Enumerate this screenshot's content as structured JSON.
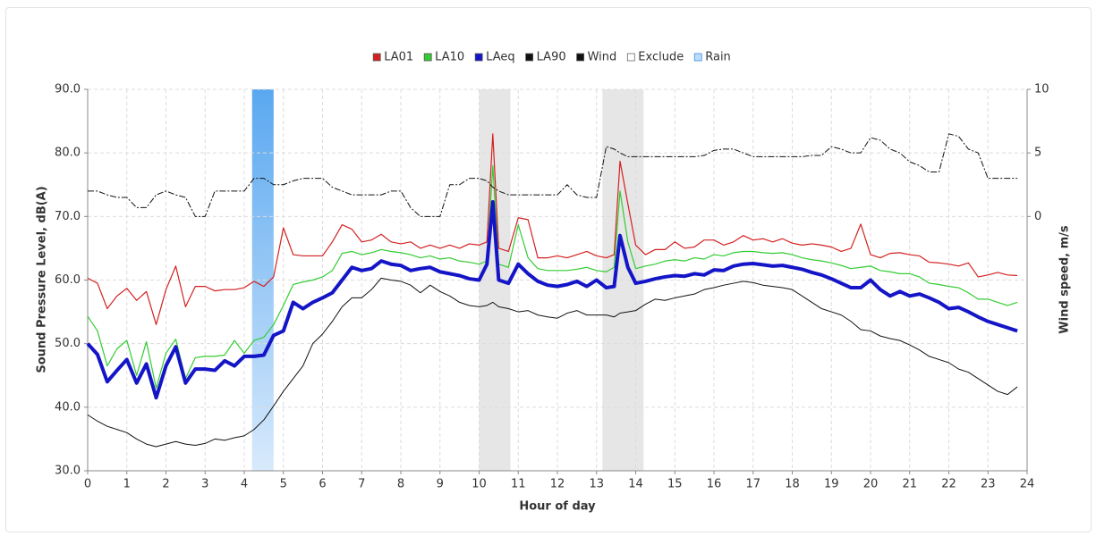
{
  "chart_data": {
    "type": "line",
    "x_label": "Hour of day",
    "y_label": "Sound Pressure Level, dB(A)",
    "y2_label": "Wind speed, m/s",
    "xlim": [
      0,
      24
    ],
    "xticks": [
      0,
      1,
      2,
      3,
      4,
      5,
      6,
      7,
      8,
      9,
      10,
      11,
      12,
      13,
      14,
      15,
      16,
      17,
      18,
      19,
      20,
      21,
      22,
      23,
      24
    ],
    "ylim": [
      30,
      90
    ],
    "yticks": [
      {
        "value": 30,
        "label": "30.0"
      },
      {
        "value": 40,
        "label": "40.0"
      },
      {
        "value": 50,
        "label": "50.0"
      },
      {
        "value": 60,
        "label": "60.0"
      },
      {
        "value": 70,
        "label": "70.0"
      },
      {
        "value": 80,
        "label": "80.0"
      },
      {
        "value": 90,
        "label": "90.0"
      }
    ],
    "y2lim": [
      -20,
      10
    ],
    "y2ticks": [
      0,
      5,
      10
    ],
    "grid": true,
    "legend": "top",
    "x": [
      0,
      0.25,
      0.5,
      0.75,
      1,
      1.25,
      1.5,
      1.75,
      2,
      2.25,
      2.5,
      2.75,
      3,
      3.25,
      3.5,
      3.75,
      4,
      4.25,
      4.5,
      4.75,
      5,
      5.25,
      5.5,
      5.75,
      6,
      6.25,
      6.5,
      6.75,
      7,
      7.25,
      7.5,
      7.75,
      8,
      8.25,
      8.5,
      8.75,
      9,
      9.25,
      9.5,
      9.75,
      10,
      10.2,
      10.35,
      10.5,
      10.75,
      11,
      11.25,
      11.5,
      11.75,
      12,
      12.25,
      12.5,
      12.75,
      13,
      13.25,
      13.45,
      13.6,
      13.8,
      14,
      14.25,
      14.5,
      14.75,
      15,
      15.25,
      15.5,
      15.75,
      16,
      16.25,
      16.5,
      16.75,
      17,
      17.25,
      17.5,
      17.75,
      18,
      18.25,
      18.5,
      18.75,
      19,
      19.25,
      19.5,
      19.75,
      20,
      20.25,
      20.5,
      20.75,
      21,
      21.25,
      21.5,
      21.75,
      22,
      22.25,
      22.5,
      22.75,
      23,
      23.25,
      23.5,
      23.75
    ],
    "series": [
      {
        "name": "LA01",
        "color": "#d42020",
        "width": 1.2,
        "values": [
          60.3,
          59.5,
          55.5,
          57.5,
          58.7,
          56.8,
          58.2,
          53,
          58.5,
          62.2,
          55.8,
          59,
          59,
          58.3,
          58.5,
          58.5,
          58.8,
          59.8,
          59,
          60.5,
          68.2,
          64,
          63.8,
          63.8,
          63.8,
          66,
          68.7,
          68,
          66,
          66.3,
          67.2,
          66,
          65.7,
          66,
          65,
          65.5,
          65,
          65.5,
          65,
          65.7,
          65.5,
          66,
          83,
          65,
          64.5,
          69.8,
          69.5,
          63.5,
          63.5,
          63.8,
          63.5,
          64,
          64.5,
          63.8,
          63.5,
          64,
          78.7,
          72,
          65.5,
          64,
          64.8,
          64.8,
          66,
          65,
          65.2,
          66.3,
          66.3,
          65.5,
          66,
          67,
          66.3,
          66.5,
          66,
          66.5,
          65.8,
          65.5,
          65.7,
          65.5,
          65.2,
          64.5,
          65,
          68.8,
          64,
          63.5,
          64.2,
          64.3,
          64,
          63.8,
          62.8,
          62.7,
          62.5,
          62.2,
          62.7,
          60.5,
          60.8,
          61.2,
          60.8,
          60.7
        ]
      },
      {
        "name": "LA10",
        "color": "#33cc33",
        "width": 1.2,
        "values": [
          54.3,
          52,
          46.5,
          49.2,
          50.5,
          45,
          50.3,
          43,
          48.5,
          50.7,
          44.5,
          47.8,
          48,
          48,
          48.2,
          50.5,
          48.5,
          50.5,
          51,
          53,
          56,
          59.3,
          59.7,
          60,
          60.5,
          61.5,
          64.2,
          64.5,
          64,
          64.3,
          64.8,
          64.5,
          64.3,
          64,
          63.5,
          63.8,
          63.3,
          63.5,
          63,
          62.8,
          62.5,
          63,
          78,
          62.5,
          62,
          68.7,
          63.5,
          61.8,
          61.5,
          61.5,
          61.5,
          61.7,
          62,
          61.5,
          61.3,
          62,
          74,
          66,
          61.8,
          62.2,
          62.5,
          63,
          63.2,
          63,
          63.5,
          63.3,
          64,
          63.8,
          64.3,
          64.5,
          64.5,
          64.3,
          64.2,
          64.3,
          64,
          63.5,
          63.2,
          63,
          62.7,
          62.3,
          61.8,
          62,
          62.2,
          61.5,
          61.3,
          61,
          61,
          60.5,
          59.5,
          59.3,
          59,
          58.8,
          58,
          57,
          57,
          56.5,
          56,
          56.5
        ]
      },
      {
        "name": "LAeq",
        "color": "#1515c8",
        "width": 4,
        "values": [
          50,
          48.3,
          44,
          45.8,
          47.5,
          43.8,
          46.8,
          41.5,
          46.5,
          49.5,
          43.8,
          46,
          46,
          45.8,
          47.3,
          46.5,
          48,
          48,
          48.2,
          51.3,
          52,
          56.5,
          55.5,
          56.5,
          57.2,
          58,
          60,
          62,
          61.5,
          61.8,
          63,
          62.5,
          62.3,
          61.5,
          61.8,
          62,
          61.3,
          61,
          60.7,
          60.2,
          60,
          62.5,
          72.3,
          60,
          59.5,
          62.5,
          61,
          59.8,
          59.2,
          59,
          59.3,
          59.8,
          59,
          60,
          58.8,
          59,
          67,
          62,
          59.5,
          59.8,
          60.2,
          60.5,
          60.7,
          60.6,
          61,
          60.8,
          61.6,
          61.5,
          62.2,
          62.5,
          62.6,
          62.4,
          62.2,
          62.3,
          62,
          61.7,
          61.2,
          60.8,
          60.2,
          59.5,
          58.8,
          58.8,
          60,
          58.5,
          57.5,
          58.2,
          57.5,
          57.8,
          57.2,
          56.5,
          55.5,
          55.7,
          55,
          54.2,
          53.5,
          53,
          52.5,
          52
        ]
      },
      {
        "name": "LA90",
        "color": "#111111",
        "width": 1,
        "values": [
          38.8,
          37.8,
          37,
          36.5,
          36,
          35,
          34.2,
          33.8,
          34.2,
          34.6,
          34.2,
          34,
          34.3,
          35,
          34.8,
          35.2,
          35.5,
          36.5,
          38,
          40.2,
          42.5,
          44.5,
          46.5,
          50,
          51.5,
          53.5,
          55.8,
          57.2,
          57.2,
          58.5,
          60.3,
          60,
          59.8,
          59.2,
          58,
          59.2,
          58.2,
          57.5,
          56.5,
          56,
          55.8,
          56,
          56.5,
          55.8,
          55.5,
          55,
          55.2,
          54.5,
          54.2,
          54,
          54.8,
          55.2,
          54.5,
          54.5,
          54.5,
          54.2,
          54.8,
          55,
          55.2,
          56.2,
          57,
          56.8,
          57.2,
          57.5,
          57.8,
          58.5,
          58.8,
          59.2,
          59.5,
          59.8,
          59.6,
          59.2,
          59,
          58.8,
          58.5,
          57.5,
          56.5,
          55.5,
          55,
          54.5,
          53.5,
          52.2,
          52,
          51.2,
          50.8,
          50.5,
          49.8,
          49,
          48,
          47.5,
          47,
          46,
          45.5,
          44.5,
          43.5,
          42.5,
          42,
          43.2
        ]
      },
      {
        "name": "Wind",
        "color": "#111111",
        "width": 1,
        "dash": true,
        "axis": "y2",
        "values": [
          2,
          2,
          1.7,
          1.5,
          1.5,
          0.7,
          0.7,
          1.7,
          2,
          1.7,
          1.5,
          0,
          0,
          2,
          2,
          2,
          2,
          3,
          3,
          2.5,
          2.5,
          2.8,
          3,
          3,
          3,
          2.3,
          2,
          1.7,
          1.7,
          1.7,
          1.7,
          2,
          2,
          0.7,
          0,
          0,
          0,
          2.5,
          2.5,
          3,
          3,
          2.8,
          2.3,
          2,
          1.7,
          1.7,
          1.7,
          1.7,
          1.7,
          1.7,
          2.5,
          1.7,
          1.5,
          1.5,
          5.5,
          5.3,
          5,
          4.7,
          4.7,
          4.7,
          4.7,
          4.7,
          4.7,
          4.7,
          4.7,
          4.8,
          5.2,
          5.3,
          5.3,
          5,
          4.7,
          4.7,
          4.7,
          4.7,
          4.7,
          4.7,
          4.8,
          4.8,
          5.5,
          5.3,
          5,
          5,
          6.2,
          6,
          5.3,
          5,
          4.3,
          4,
          3.5,
          3.5,
          6.5,
          6.3,
          5.3,
          5,
          3,
          3,
          3,
          3
        ]
      }
    ],
    "exclude": {
      "name": "Exclude",
      "color": "#e6e6e6",
      "ranges": [
        [
          10,
          10.8
        ],
        [
          13.15,
          14.2
        ]
      ]
    },
    "rain": {
      "name": "Rain",
      "color": "#5aa8f0",
      "ranges": [
        [
          4.2,
          4.75
        ]
      ]
    }
  }
}
